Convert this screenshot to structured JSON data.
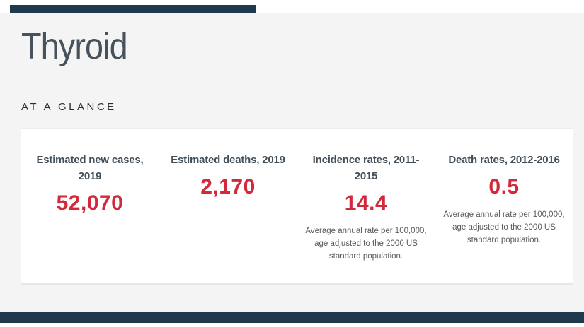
{
  "page": {
    "title": "Thyroid",
    "section_label": "AT A GLANCE"
  },
  "colors": {
    "accent_red": "#d2293c",
    "bar_navy": "#1f3a4c",
    "heading_slate": "#47525d",
    "band_gray": "#f4f4f4"
  },
  "cards": [
    {
      "title": "Estimated new cases, 2019",
      "value": "52,070",
      "note": ""
    },
    {
      "title": "Estimated deaths, 2019",
      "value": "2,170",
      "note": ""
    },
    {
      "title": "Incidence rates, 2011-2015",
      "value": "14.4",
      "note": "Average annual rate per 100,000, age adjusted to the 2000 US standard population."
    },
    {
      "title": "Death rates, 2012-2016",
      "value": "0.5",
      "note": "Average annual rate per 100,000, age adjusted to the 2000 US standard population."
    }
  ]
}
